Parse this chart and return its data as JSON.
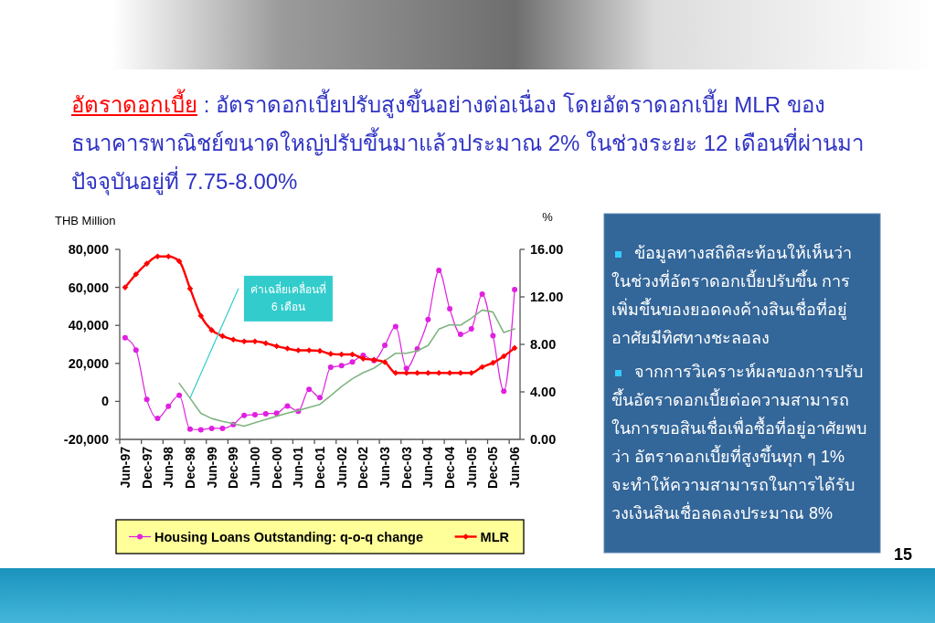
{
  "chart_data": {
    "type": "line",
    "title": "อัตราดอกเบี้ย",
    "subtitle": ": อัตราดอกเบี้ยปรับสูงขึ้นอย่างต่อเนื่อง โดยอัตราดอกเบี้ย MLR ของธนาคารพาณิชย์ขนาดใหญ่ปรับขึ้นมาแล้วประมาณ 2% ในช่วงระยะ 12 เดือนที่ผ่านมา ปัจจุบันอยู่ที่ 7.75-8.00%",
    "ylabel": "THB Million",
    "y2label": "%",
    "categories": [
      "Jun-97",
      null,
      "Dec-97",
      null,
      "Jun-98",
      null,
      "Dec-98",
      null,
      "Jun-99",
      null,
      "Dec-99",
      null,
      "Jun-00",
      null,
      "Dec-00",
      null,
      "Jun-01",
      null,
      "Dec-01",
      null,
      "Jun-02",
      null,
      "Dec-02",
      null,
      "Jun-03",
      null,
      "Dec-03",
      null,
      "Jun-04",
      null,
      "Dec-04",
      null,
      "Jun-05",
      null,
      "Dec-05",
      null,
      "Jun-06"
    ],
    "series": [
      {
        "name": "Housing Loans Outstanding: q-o-q change",
        "color": "#e020e0",
        "marker": "circle",
        "values": [
          33500,
          27000,
          1000,
          -8900,
          -2600,
          3200,
          -14600,
          -14900,
          -14200,
          -14200,
          -12200,
          -7400,
          -7000,
          -6500,
          -6200,
          -2500,
          -5200,
          6300,
          2000,
          18000,
          18800,
          20700,
          24200,
          21500,
          29500,
          39400,
          17400,
          27600,
          43100,
          68900,
          48700,
          35300,
          38200,
          56500,
          34600,
          5400,
          58900
        ]
      },
      {
        "color": "#80b480",
        "marker": "none",
        "values": [
          null,
          null,
          null,
          null,
          null,
          9500,
          1700,
          -6300,
          -9000,
          -10500,
          -11700,
          -13000,
          -11200,
          -9500,
          -7800,
          -6200,
          -4800,
          -3200,
          -1600,
          3000,
          7800,
          11900,
          15100,
          17500,
          21400,
          25300,
          25300,
          26600,
          29400,
          38000,
          40300,
          40100,
          43800,
          48100,
          47000,
          36200,
          38200
        ]
      },
      {
        "name": "MLR",
        "color": "#ff0000",
        "marker": "diamond",
        "axis": "y2",
        "values": [
          12.8,
          13.9,
          14.8,
          15.4,
          15.4,
          15.0,
          12.7,
          10.4,
          9.2,
          8.7,
          8.4,
          8.25,
          8.25,
          8.1,
          7.85,
          7.65,
          7.5,
          7.5,
          7.45,
          7.2,
          7.15,
          7.15,
          6.8,
          6.7,
          6.5,
          5.6,
          5.6,
          5.6,
          5.6,
          5.6,
          5.6,
          5.6,
          5.6,
          6.1,
          6.45,
          7.0,
          7.7
        ]
      }
    ],
    "ylim": [
      -20000,
      80000
    ],
    "yticks": [
      {
        "value": -20000,
        "label": "-20,000"
      },
      0,
      {
        "value": 20000,
        "label": "20,000"
      },
      {
        "value": 40000,
        "label": "40,000"
      },
      {
        "value": 60000,
        "label": "60,000"
      },
      {
        "value": 80000,
        "label": "80,000"
      }
    ],
    "y2lim": [
      0,
      16
    ],
    "y2ticks": [
      {
        "value": 0,
        "label": "0.00"
      },
      {
        "value": 4,
        "label": "4.00"
      },
      {
        "value": 8,
        "label": "8.00"
      },
      {
        "value": 12,
        "label": "12.00"
      },
      {
        "value": 16,
        "label": "16.00"
      }
    ],
    "legend": "bottom",
    "annotations": [
      {
        "text": "ค่าเฉลี่ยเคลื่อนที่ 6 เดือน",
        "x": "Dec-98",
        "y": 1700
      },
      "ข้อมูลทางสถิติสะท้อนให้เห็นว่าในช่วงที่อัตราดอกเบี้ยปรับขึ้น การเพิ่มขึ้นของยอดคงค้างสินเชื่อที่อยู่อาศัยมีทิศทางชะลอลง",
      "จากการวิเคราะห์ผลของการปรับขึ้นอัตราดอกเบี้ยต่อความสามารถในการขอสินเชื่อเพื่อซื้อที่อยู่อาศัยพบว่า อัตราดอกเบี้ยที่สูงขึ้นทุก ๆ 1% จะทำให้ความสามารถในการได้รับวงเงินสินเชื่อลดลงประมาณ 8%",
      "15"
    ]
  }
}
